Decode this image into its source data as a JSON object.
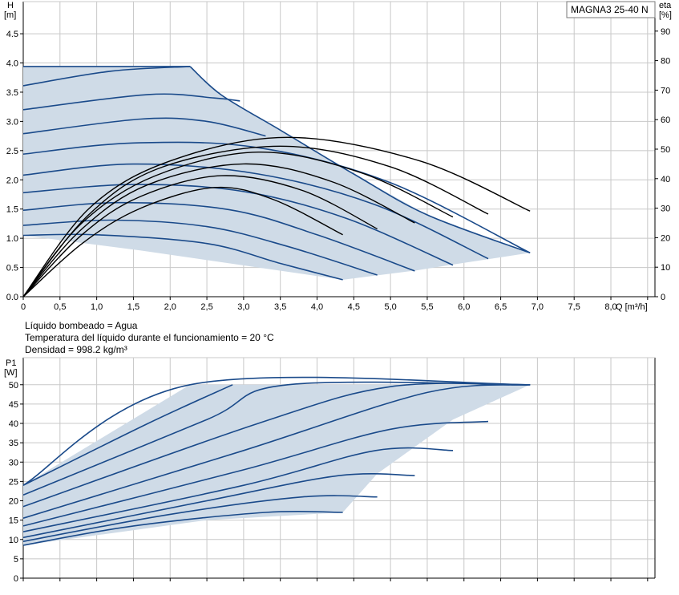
{
  "model": "MAGNA3 25-40 N",
  "notes": [
    "Líquido bombeado = Agua",
    "Temperatura del líquido durante el funcionamiento = 20 °C",
    "Densidad = 998.2 kg/m³"
  ],
  "colors": {
    "curve": "#1a4a8a",
    "area": "#cfdbe7",
    "eff": "#000000",
    "grid": "#c8c8c8"
  },
  "chart_data": [
    {
      "type": "line",
      "title": "MAGNA3 25-40 N",
      "ylabel_left": [
        "H",
        "[m]"
      ],
      "ylabel_right": [
        "eta",
        "[%]"
      ],
      "xlabel": "Q [m³/h]",
      "xlim": [
        0,
        8.6
      ],
      "ylim": [
        0,
        5.05
      ],
      "ylim_right": [
        0,
        100
      ],
      "xticks": [
        "0",
        "0,5",
        "1,0",
        "1,5",
        "2,0",
        "2,5",
        "3,0",
        "3,5",
        "4,0",
        "4,5",
        "5,0",
        "5,5",
        "6,0",
        "6,5",
        "7,0",
        "7,5",
        "8,0"
      ],
      "yticks": [
        "0.0",
        "0.5",
        "1.0",
        "1.5",
        "2.0",
        "2.5",
        "3.0",
        "3.5",
        "4.0",
        "4.5"
      ],
      "yticks_right": [
        "0",
        "10",
        "20",
        "30",
        "40",
        "50",
        "60",
        "70",
        "80",
        "90"
      ],
      "grid": true,
      "operating_area": [
        [
          0,
          3.94
        ],
        [
          2.27,
          3.94
        ],
        [
          2.7,
          3.45
        ],
        [
          3.5,
          2.85
        ],
        [
          4.5,
          2.1
        ],
        [
          5.5,
          1.4
        ],
        [
          6.9,
          0.75
        ],
        [
          5.85,
          0.55
        ],
        [
          5.35,
          0.45
        ],
        [
          4.35,
          0.29
        ],
        [
          1.6,
          0.79
        ],
        [
          0,
          1.05
        ]
      ],
      "series": [
        {
          "values": [
            [
              0,
              1.05
            ],
            [
              1.0,
              1.06
            ],
            [
              2.5,
              0.91
            ],
            [
              3.5,
              0.57
            ],
            [
              4.35,
              0.29
            ]
          ]
        },
        {
          "values": [
            [
              0,
              1.22
            ],
            [
              1.2,
              1.31
            ],
            [
              2.5,
              1.2
            ],
            [
              3.6,
              0.86
            ],
            [
              4.82,
              0.37
            ]
          ]
        },
        {
          "values": [
            [
              0,
              1.48
            ],
            [
              1.3,
              1.61
            ],
            [
              2.8,
              1.49
            ],
            [
              4.0,
              1.06
            ],
            [
              5.33,
              0.44
            ]
          ]
        },
        {
          "values": [
            [
              0,
              1.78
            ],
            [
              1.5,
              1.92
            ],
            [
              3.0,
              1.8
            ],
            [
              4.4,
              1.34
            ],
            [
              5.85,
              0.54
            ]
          ]
        },
        {
          "values": [
            [
              0,
              2.08
            ],
            [
              1.5,
              2.27
            ],
            [
              3.2,
              2.1
            ],
            [
              4.8,
              1.57
            ],
            [
              6.33,
              0.65
            ]
          ]
        },
        {
          "values": [
            [
              0,
              2.44
            ],
            [
              1.5,
              2.63
            ],
            [
              3.2,
              2.55
            ],
            [
              5.0,
              1.95
            ],
            [
              6.9,
              0.75
            ]
          ]
        },
        {
          "values": [
            [
              0,
              2.79
            ],
            [
              1.6,
              3.04
            ],
            [
              2.5,
              3.0
            ],
            [
              3.3,
              2.75
            ]
          ]
        },
        {
          "values": [
            [
              0,
              3.2
            ],
            [
              1.7,
              3.46
            ],
            [
              2.6,
              3.4
            ],
            [
              2.95,
              3.35
            ]
          ]
        },
        {
          "values": [
            [
              0,
              3.61
            ],
            [
              1.2,
              3.86
            ],
            [
              2.27,
              3.94
            ]
          ]
        },
        {
          "values": [
            [
              0,
              3.94
            ],
            [
              2.27,
              3.94
            ]
          ]
        },
        {
          "values": [
            [
              2.27,
              3.94
            ],
            [
              2.7,
              3.45
            ],
            [
              3.5,
              2.85
            ],
            [
              4.5,
              2.1
            ],
            [
              5.5,
              1.4
            ],
            [
              6.9,
              0.75
            ]
          ]
        }
      ],
      "efficiency_series": [
        {
          "values": [
            [
              0,
              0
            ],
            [
              0.8,
              18
            ],
            [
              1.6,
              30
            ],
            [
              2.6,
              37
            ],
            [
              3.4,
              33
            ],
            [
              4.35,
              21
            ]
          ]
        },
        {
          "values": [
            [
              0,
              0
            ],
            [
              0.8,
              21
            ],
            [
              1.6,
              34
            ],
            [
              2.7,
              41
            ],
            [
              3.8,
              36
            ],
            [
              4.82,
              23
            ]
          ]
        },
        {
          "values": [
            [
              0,
              0
            ],
            [
              0.8,
              23
            ],
            [
              1.7,
              38
            ],
            [
              3.0,
              45
            ],
            [
              4.2,
              39
            ],
            [
              5.33,
              25
            ]
          ]
        },
        {
          "values": [
            [
              0,
              0
            ],
            [
              0.8,
              25
            ],
            [
              1.8,
              41
            ],
            [
              3.2,
              49
            ],
            [
              4.6,
              42
            ],
            [
              5.85,
              27
            ]
          ]
        },
        {
          "values": [
            [
              0,
              0
            ],
            [
              0.9,
              28
            ],
            [
              1.9,
              44
            ],
            [
              3.5,
              51
            ],
            [
              5.0,
              44
            ],
            [
              6.33,
              28
            ]
          ]
        },
        {
          "values": [
            [
              0,
              0
            ],
            [
              0.9,
              30
            ],
            [
              2.0,
              46
            ],
            [
              3.6,
              54
            ],
            [
              5.4,
              46
            ],
            [
              6.9,
              29
            ]
          ]
        }
      ]
    },
    {
      "type": "line",
      "ylabel": [
        "P1",
        "[W]"
      ],
      "xlim": [
        0,
        8.6
      ],
      "ylim": [
        0,
        57
      ],
      "yticks": [
        "0",
        "5",
        "10",
        "15",
        "20",
        "25",
        "30",
        "35",
        "40",
        "45",
        "50"
      ],
      "grid": true,
      "operating_area": [
        [
          0,
          24
        ],
        [
          2.27,
          50
        ],
        [
          6.9,
          50
        ],
        [
          5.85,
          41
        ],
        [
          4.82,
          27
        ],
        [
          4.35,
          17
        ],
        [
          2.5,
          15
        ],
        [
          0,
          8.5
        ]
      ],
      "series": [
        {
          "values": [
            [
              0,
              8.5
            ],
            [
              1.5,
              13.5
            ],
            [
              3.3,
              17
            ],
            [
              4.35,
              17
            ]
          ]
        },
        {
          "values": [
            [
              0,
              9.5
            ],
            [
              2.0,
              16.5
            ],
            [
              3.8,
              21
            ],
            [
              4.82,
              21
            ]
          ]
        },
        {
          "values": [
            [
              0,
              10.5
            ],
            [
              2.5,
              20
            ],
            [
              4.3,
              26.5
            ],
            [
              5.33,
              26.5
            ]
          ]
        },
        {
          "values": [
            [
              0,
              12
            ],
            [
              3.0,
              24
            ],
            [
              4.8,
              33
            ],
            [
              5.85,
              33
            ]
          ]
        },
        {
          "values": [
            [
              0,
              13.5
            ],
            [
              3.0,
              28
            ],
            [
              5.0,
              38.5
            ],
            [
              6.33,
              40.5
            ]
          ]
        },
        {
          "values": [
            [
              0,
              15.5
            ],
            [
              3.0,
              33
            ],
            [
              5.5,
              48
            ],
            [
              6.9,
              50
            ]
          ]
        },
        {
          "values": [
            [
              0,
              18.5
            ],
            [
              3.2,
              40
            ],
            [
              5.0,
              49.5
            ],
            [
              6.9,
              50
            ]
          ]
        },
        {
          "values": [
            [
              0,
              21.5
            ],
            [
              2.5,
              41
            ],
            [
              3.6,
              50
            ],
            [
              6.9,
              50
            ]
          ]
        },
        {
          "values": [
            [
              0,
              24
            ],
            [
              2.27,
              50
            ],
            [
              6.9,
              50
            ]
          ]
        },
        {
          "values": [
            [
              0,
              24
            ],
            [
              1.7,
              40
            ],
            [
              2.85,
              50
            ]
          ]
        }
      ]
    }
  ]
}
